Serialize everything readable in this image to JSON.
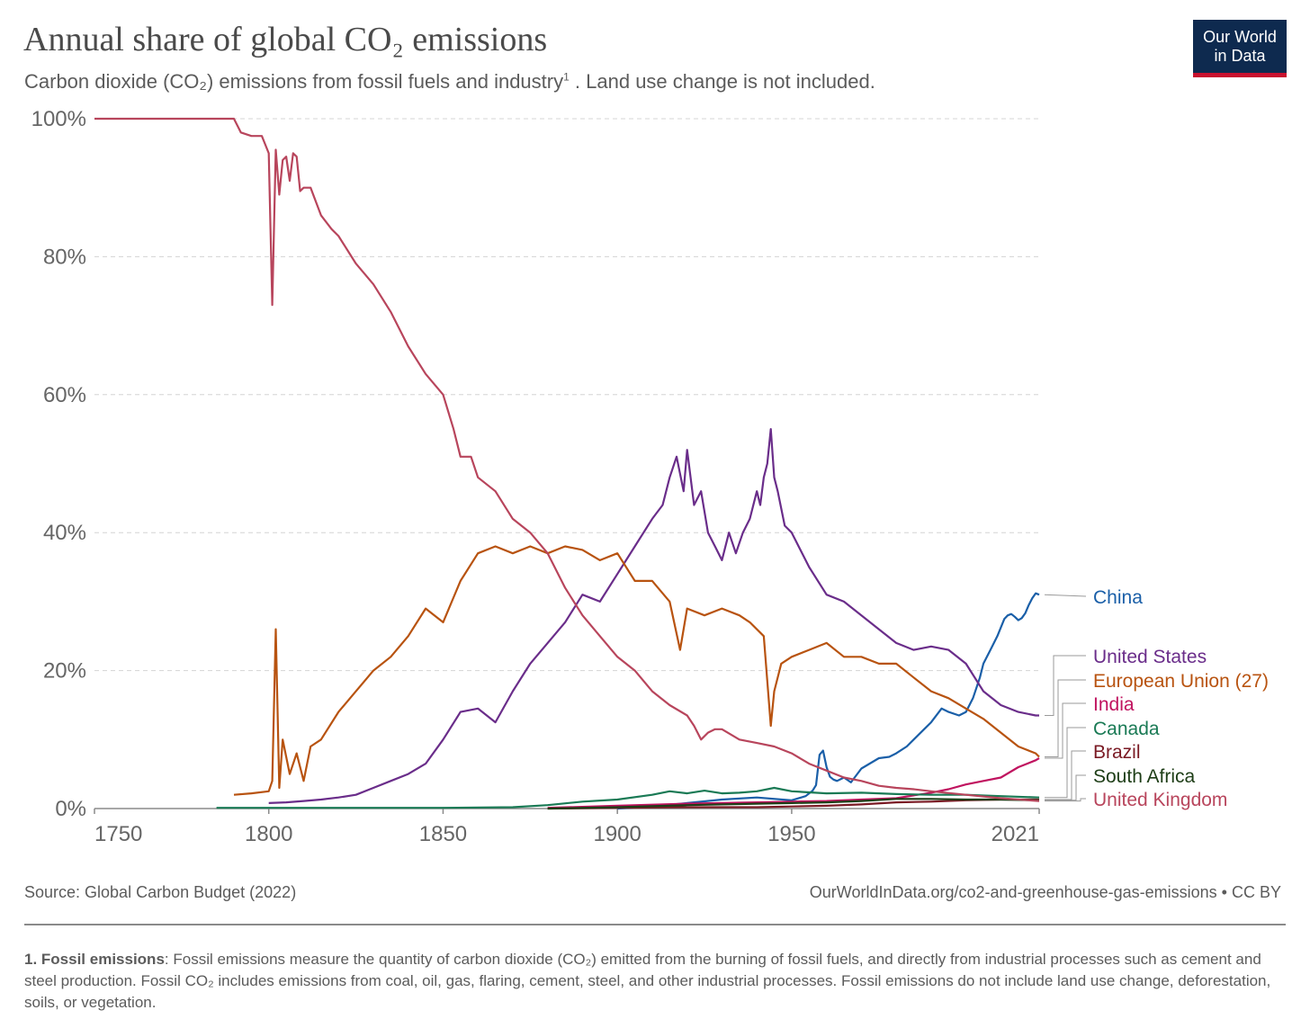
{
  "header": {
    "title": "Annual share of global CO₂ emissions",
    "subtitle": "Carbon dioxide (CO₂) emissions from fossil fuels and industry",
    "subtitle_sup": "1",
    "subtitle_tail": " . Land use change is not included."
  },
  "logo": {
    "line1": "Our World",
    "line2": "in Data",
    "bg_color": "#0e2a4f",
    "accent_color": "#c8102e"
  },
  "footer": {
    "source": "Source: Global Carbon Budget (2022)",
    "credit": "OurWorldInData.org/co2-and-greenhouse-gas-emissions • CC BY",
    "footnote_term": "1. Fossil emissions",
    "footnote_text": ": Fossil emissions measure the quantity of carbon dioxide (CO₂) emitted from the burning of fossil fuels, and directly from industrial processes such as cement and steel production. Fossil CO₂ includes emissions from coal, oil, gas, flaring, cement, steel, and other industrial processes. Fossil emissions do not include land use change, deforestation, soils, or vegetation."
  },
  "chart_data": {
    "type": "line",
    "x_ticks": [
      "1750",
      "1800",
      "1850",
      "1900",
      "1950",
      "2021"
    ],
    "y_ticks": [
      "0%",
      "20%",
      "40%",
      "60%",
      "80%",
      "100%"
    ],
    "xlim": [
      1750,
      2021
    ],
    "ylim": [
      0,
      100
    ],
    "grid": true,
    "legend_placement": "right",
    "series": [
      {
        "name": "China",
        "color": "#1a5fa8",
        "x": [
          1900,
          1910,
          1920,
          1930,
          1940,
          1950,
          1954,
          1955,
          1956,
          1957,
          1958,
          1959,
          1960,
          1961,
          1962,
          1963,
          1965,
          1967,
          1970,
          1975,
          1978,
          1980,
          1983,
          1985,
          1988,
          1990,
          1993,
          1995,
          1998,
          2000,
          2002,
          2004,
          2005,
          2007,
          2009,
          2011,
          2012,
          2013,
          2014,
          2015,
          2016,
          2017,
          2018,
          2019,
          2020,
          2021
        ],
        "y": [
          0,
          0.3,
          0.8,
          1.3,
          1.6,
          1.2,
          1.8,
          2.2,
          2.6,
          3.4,
          7.8,
          8.4,
          6,
          4.6,
          4.2,
          4,
          4.5,
          3.8,
          5.8,
          7.3,
          7.5,
          8,
          9,
          10,
          11.5,
          12.5,
          14.5,
          14,
          13.5,
          14,
          16,
          19,
          21,
          23,
          25,
          27.5,
          28,
          28.2,
          27.8,
          27.3,
          27.6,
          28.3,
          29.5,
          30.5,
          31.2,
          31
        ]
      },
      {
        "name": "United States",
        "color": "#6a2d8a",
        "x": [
          1800,
          1805,
          1810,
          1815,
          1820,
          1825,
          1830,
          1835,
          1840,
          1845,
          1850,
          1855,
          1860,
          1865,
          1870,
          1875,
          1880,
          1885,
          1890,
          1895,
          1900,
          1905,
          1910,
          1913,
          1915,
          1917,
          1919,
          1920,
          1922,
          1924,
          1926,
          1928,
          1930,
          1932,
          1934,
          1936,
          1938,
          1940,
          1941,
          1942,
          1943,
          1944,
          1945,
          1946,
          1948,
          1950,
          1955,
          1960,
          1965,
          1970,
          1975,
          1980,
          1985,
          1990,
          1995,
          2000,
          2005,
          2010,
          2015,
          2020,
          2021
        ],
        "y": [
          0.8,
          0.9,
          1.1,
          1.3,
          1.6,
          2,
          3,
          4,
          5,
          6.5,
          10,
          14,
          14.5,
          12.5,
          17,
          21,
          24,
          27,
          31,
          30,
          34,
          38,
          42,
          44,
          48,
          51,
          46,
          52,
          44,
          46,
          40,
          38,
          36,
          40,
          37,
          40,
          42,
          46,
          44,
          48,
          50,
          55,
          48,
          46,
          41,
          40,
          35,
          31,
          30,
          28,
          26,
          24,
          23,
          23.5,
          23,
          21,
          17,
          15,
          14,
          13.5,
          13.5
        ]
      },
      {
        "name": "European Union (27)",
        "color": "#b85310",
        "x": [
          1790,
          1795,
          1800,
          1801,
          1802,
          1803,
          1804,
          1806,
          1808,
          1810,
          1812,
          1815,
          1820,
          1825,
          1830,
          1835,
          1840,
          1845,
          1850,
          1855,
          1860,
          1865,
          1870,
          1875,
          1880,
          1885,
          1890,
          1895,
          1900,
          1905,
          1910,
          1915,
          1918,
          1920,
          1925,
          1930,
          1935,
          1938,
          1942,
          1944,
          1945,
          1947,
          1950,
          1955,
          1960,
          1965,
          1970,
          1975,
          1980,
          1985,
          1990,
          1995,
          2000,
          2005,
          2010,
          2015,
          2020,
          2021
        ],
        "y": [
          2,
          2.2,
          2.5,
          4,
          26,
          3,
          10,
          5,
          8,
          4,
          9,
          10,
          14,
          17,
          20,
          22,
          25,
          29,
          27,
          33,
          37,
          38,
          37,
          38,
          37,
          38,
          37.5,
          36,
          37,
          33,
          33,
          30,
          23,
          29,
          28,
          29,
          28,
          27,
          25,
          12,
          17,
          21,
          22,
          23,
          24,
          22,
          22,
          21,
          21,
          19,
          17,
          16,
          14.5,
          13,
          11,
          9,
          8,
          7.5
        ]
      },
      {
        "name": "India",
        "color": "#c0135f",
        "x": [
          1880,
          1900,
          1920,
          1940,
          1950,
          1960,
          1970,
          1980,
          1985,
          1990,
          1995,
          2000,
          2005,
          2010,
          2015,
          2020,
          2021
        ],
        "y": [
          0.1,
          0.4,
          0.7,
          0.9,
          1,
          1.1,
          1.3,
          1.5,
          1.9,
          2.3,
          2.8,
          3.5,
          4,
          4.5,
          6,
          7,
          7.3
        ]
      },
      {
        "name": "Canada",
        "color": "#1a7a55",
        "x": [
          1785,
          1850,
          1870,
          1880,
          1890,
          1900,
          1910,
          1915,
          1920,
          1925,
          1930,
          1935,
          1940,
          1945,
          1950,
          1960,
          1970,
          1980,
          1990,
          2000,
          2010,
          2021
        ],
        "y": [
          0.1,
          0.1,
          0.2,
          0.5,
          1,
          1.3,
          2,
          2.5,
          2.2,
          2.6,
          2.2,
          2.3,
          2.5,
          3,
          2.5,
          2.2,
          2.3,
          2.1,
          2,
          2,
          1.8,
          1.6
        ]
      },
      {
        "name": "Brazil",
        "color": "#7a1a24",
        "x": [
          1880,
          1900,
          1920,
          1940,
          1950,
          1960,
          1970,
          1980,
          1990,
          2000,
          2010,
          2021
        ],
        "y": [
          0,
          0.1,
          0.2,
          0.2,
          0.3,
          0.4,
          0.6,
          0.9,
          1,
          1.2,
          1.3,
          1.3
        ]
      },
      {
        "name": "South Africa",
        "color": "#1d3d16",
        "x": [
          1880,
          1900,
          1920,
          1940,
          1950,
          1960,
          1970,
          1980,
          1990,
          2000,
          2010,
          2021
        ],
        "y": [
          0,
          0.2,
          0.5,
          0.7,
          0.8,
          0.9,
          1.1,
          1.4,
          1.4,
          1.3,
          1.3,
          1.2
        ]
      },
      {
        "name": "United Kingdom",
        "color": "#b8455c",
        "x": [
          1750,
          1790,
          1792,
          1795,
          1798,
          1800,
          1801,
          1802,
          1803,
          1804,
          1805,
          1806,
          1807,
          1808,
          1809,
          1810,
          1812,
          1815,
          1818,
          1820,
          1825,
          1830,
          1835,
          1840,
          1845,
          1850,
          1853,
          1855,
          1858,
          1860,
          1865,
          1870,
          1875,
          1880,
          1885,
          1890,
          1895,
          1900,
          1905,
          1910,
          1915,
          1920,
          1922,
          1924,
          1926,
          1928,
          1930,
          1935,
          1940,
          1945,
          1950,
          1955,
          1960,
          1965,
          1970,
          1975,
          1980,
          1985,
          1990,
          2000,
          2010,
          2021
        ],
        "y": [
          100,
          100,
          98,
          97.5,
          97.5,
          95,
          73,
          95.5,
          89,
          94,
          94.5,
          91,
          95,
          94.5,
          89.5,
          90,
          90,
          86,
          84,
          83,
          79,
          76,
          72,
          67,
          63,
          60,
          55,
          51,
          51,
          48,
          46,
          42,
          40,
          37,
          32,
          28,
          25,
          22,
          20,
          17,
          15,
          13.5,
          12,
          10,
          11,
          11.5,
          11.5,
          10,
          9.5,
          9,
          8,
          6.5,
          5.5,
          4.5,
          4,
          3.3,
          3,
          2.8,
          2.5,
          2,
          1.5,
          1.1
        ]
      }
    ]
  }
}
